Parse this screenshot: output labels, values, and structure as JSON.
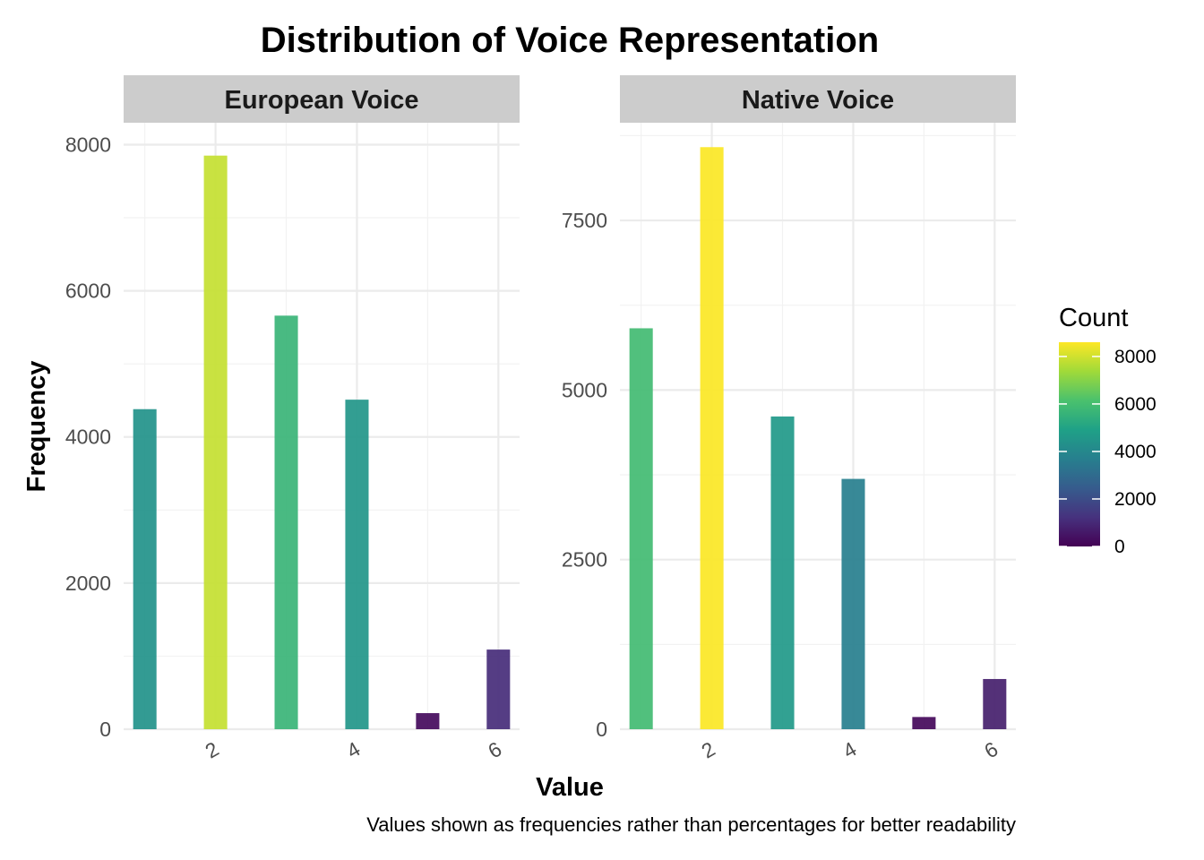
{
  "chart_data": {
    "type": "bar",
    "title": "Distribution of Voice Representation",
    "xlabel": "Value",
    "ylabel": "Frequency",
    "caption": "Values shown as frequencies rather than percentages for better readability",
    "legend": {
      "title": "Count",
      "position": "right",
      "range": [
        0,
        8600
      ],
      "ticks": [
        0,
        2000,
        4000,
        6000,
        8000
      ],
      "colormap": "viridis",
      "stops": [
        "#440154",
        "#46327e",
        "#365c8d",
        "#277f8e",
        "#1fa187",
        "#4ac16d",
        "#a0da39",
        "#fde725"
      ]
    },
    "grid": true,
    "panels": [
      {
        "name": "European Voice",
        "x": [
          1,
          2,
          3,
          4,
          5,
          6
        ],
        "values": [
          4380,
          7850,
          5660,
          4510,
          220,
          1090
        ],
        "xlim": [
          0.7,
          6.3
        ],
        "xticks": [
          2,
          4,
          6
        ],
        "ylim": [
          0,
          8300
        ],
        "yticks": [
          0,
          2000,
          4000,
          6000,
          8000
        ]
      },
      {
        "name": "Native Voice",
        "x": [
          1,
          2,
          3,
          4,
          5,
          6
        ],
        "values": [
          5910,
          8580,
          4610,
          3690,
          180,
          740
        ],
        "xlim": [
          0.7,
          6.3
        ],
        "xticks": [
          2,
          4,
          6
        ],
        "ylim": [
          0,
          8940
        ],
        "yticks": [
          0,
          2500,
          5000,
          7500
        ]
      }
    ]
  }
}
